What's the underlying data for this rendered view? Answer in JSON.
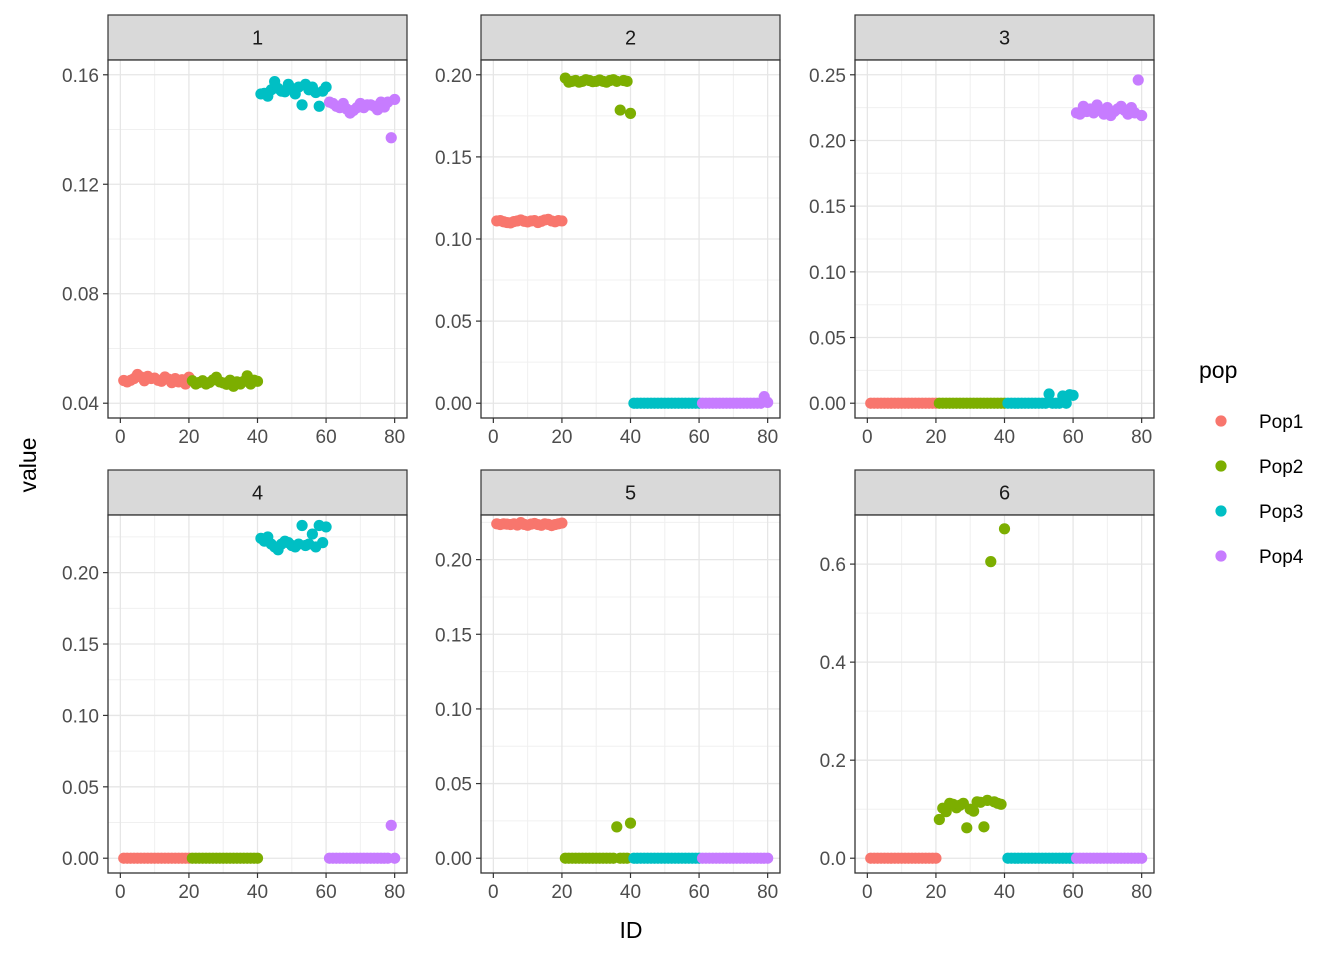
{
  "chart_data": {
    "type": "scatter",
    "facet_by": "panel",
    "scales": "free_y",
    "xlabel": "ID",
    "ylabel": "value",
    "xlim": [
      0,
      80
    ],
    "x_ticks": [
      0,
      20,
      40,
      60,
      80
    ],
    "grid": true,
    "legend": {
      "title": "pop",
      "placement": "right",
      "entries": [
        {
          "name": "Pop1",
          "color": "#F8766D"
        },
        {
          "name": "Pop2",
          "color": "#7CAE00"
        },
        {
          "name": "Pop3",
          "color": "#00BFC4"
        },
        {
          "name": "Pop4",
          "color": "#C77CFF"
        }
      ]
    },
    "panels": [
      {
        "strip": "1",
        "ylim": [
          0.04,
          0.16
        ],
        "y_ticks": [
          "0.04",
          "0.08",
          "0.12",
          "0.16"
        ],
        "x_tick_labels": [
          "0",
          "20",
          "40",
          "60",
          "80"
        ],
        "series": [
          {
            "name": "Pop1",
            "values": [
              0.0483,
              0.0478,
              0.0484,
              0.049,
              0.0505,
              0.0496,
              0.0482,
              0.0498,
              0.049,
              0.0492,
              0.0484,
              0.048,
              0.0496,
              0.0488,
              0.0475,
              0.049,
              0.0478,
              0.0486,
              0.047,
              0.0495
            ]
          },
          {
            "name": "Pop2",
            "values": [
              0.0482,
              0.047,
              0.0476,
              0.0482,
              0.047,
              0.0476,
              0.0485,
              0.0495,
              0.0478,
              0.0474,
              0.0469,
              0.0484,
              0.0462,
              0.0478,
              0.047,
              0.048,
              0.05,
              0.047,
              0.0484,
              0.048
            ]
          },
          {
            "name": "Pop3",
            "values": [
              0.153,
              0.1532,
              0.1522,
              0.1545,
              0.1575,
              0.155,
              0.154,
              0.1538,
              0.1565,
              0.155,
              0.153,
              0.1555,
              0.149,
              0.1565,
              0.1545,
              0.1555,
              0.1535,
              0.1485,
              0.154,
              0.1555
            ]
          },
          {
            "name": "Pop4",
            "values": [
              0.15,
              0.1495,
              0.1485,
              0.148,
              0.1495,
              0.1475,
              0.146,
              0.147,
              0.148,
              0.1495,
              0.148,
              0.149,
              0.149,
              0.1485,
              0.1472,
              0.15,
              0.1482,
              0.15,
              0.137,
              0.151
            ]
          }
        ]
      },
      {
        "strip": "2",
        "ylim": [
          0.0,
          0.2
        ],
        "y_ticks": [
          "0.00",
          "0.05",
          "0.10",
          "0.15",
          "0.20"
        ],
        "x_tick_labels": [
          "0",
          "20",
          "40",
          "60",
          "80"
        ],
        "series": [
          {
            "name": "Pop1",
            "values": [
              0.111,
              0.1112,
              0.1105,
              0.11,
              0.1098,
              0.1106,
              0.111,
              0.1116,
              0.1108,
              0.1104,
              0.111,
              0.1112,
              0.11,
              0.1108,
              0.1116,
              0.112,
              0.111,
              0.1105,
              0.1112,
              0.111
            ]
          },
          {
            "name": "Pop2",
            "values": [
              0.198,
              0.1955,
              0.196,
              0.1965,
              0.1955,
              0.196,
              0.197,
              0.1965,
              0.1958,
              0.196,
              0.1968,
              0.196,
              0.1955,
              0.1965,
              0.197,
              0.196,
              0.1785,
              0.1965,
              0.196,
              0.1765
            ]
          },
          {
            "name": "Pop3",
            "values": [
              0,
              0,
              0,
              0,
              0,
              0,
              0,
              0,
              0,
              0,
              0,
              0,
              0,
              0,
              0,
              0,
              0,
              0,
              0,
              0
            ]
          },
          {
            "name": "Pop4",
            "values": [
              0,
              0,
              0,
              0,
              0,
              0,
              0,
              0,
              0,
              0,
              0,
              0,
              0,
              0,
              0,
              0,
              0,
              0,
              0.004,
              0.0005
            ]
          }
        ]
      },
      {
        "strip": "3",
        "ylim": [
          0.0,
          0.25
        ],
        "y_ticks": [
          "0.00",
          "0.05",
          "0.10",
          "0.15",
          "0.20",
          "0.25"
        ],
        "x_tick_labels": [
          "0",
          "20",
          "40",
          "60",
          "80"
        ],
        "series": [
          {
            "name": "Pop1",
            "values": [
              0,
              0,
              0,
              0,
              0,
              0,
              0,
              0,
              0,
              0,
              0,
              0,
              0,
              0,
              0,
              0,
              0,
              0,
              0,
              0
            ]
          },
          {
            "name": "Pop2",
            "values": [
              0,
              0,
              0,
              0,
              0,
              0,
              0,
              0,
              0,
              0,
              0,
              0,
              0,
              0,
              0,
              0,
              0,
              0,
              0,
              0
            ]
          },
          {
            "name": "Pop3",
            "values": [
              0,
              0,
              0,
              0,
              0,
              0,
              0,
              0,
              0,
              0,
              0,
              0,
              0.007,
              0,
              0,
              0,
              0.0055,
              0,
              0.0065,
              0.006
            ]
          },
          {
            "name": "Pop4",
            "values": [
              0.221,
              0.22,
              0.226,
              0.222,
              0.224,
              0.221,
              0.227,
              0.223,
              0.22,
              0.225,
              0.219,
              0.222,
              0.224,
              0.226,
              0.223,
              0.22,
              0.225,
              0.221,
              0.246,
              0.219
            ]
          }
        ]
      },
      {
        "strip": "4",
        "ylim": [
          0.0,
          0.23
        ],
        "y_ticks": [
          "0.00",
          "0.05",
          "0.10",
          "0.15",
          "0.20"
        ],
        "x_tick_labels": [
          "0",
          "20",
          "40",
          "60",
          "80"
        ],
        "series": [
          {
            "name": "Pop1",
            "values": [
              0,
              0,
              0,
              0,
              0,
              0,
              0,
              0,
              0,
              0,
              0,
              0,
              0,
              0,
              0,
              0,
              0,
              0,
              0,
              0
            ]
          },
          {
            "name": "Pop2",
            "values": [
              0,
              0,
              0,
              0,
              0,
              0,
              0,
              0,
              0,
              0,
              0,
              0,
              0,
              0,
              0,
              0,
              0,
              0,
              0,
              0
            ]
          },
          {
            "name": "Pop3",
            "values": [
              0.224,
              0.222,
              0.225,
              0.22,
              0.218,
              0.216,
              0.22,
              0.222,
              0.221,
              0.219,
              0.218,
              0.22,
              0.233,
              0.219,
              0.22,
              0.227,
              0.218,
              0.233,
              0.221,
              0.232
            ]
          },
          {
            "name": "Pop4",
            "values": [
              0,
              0,
              0,
              0,
              0,
              0,
              0,
              0,
              0,
              0,
              0,
              0,
              0,
              0,
              0,
              0,
              0,
              0,
              0.023,
              0
            ]
          }
        ]
      },
      {
        "strip": "5",
        "ylim": [
          0.0,
          0.22
        ],
        "y_ticks": [
          "0.00",
          "0.05",
          "0.10",
          "0.15",
          "0.20"
        ],
        "x_tick_labels": [
          "0",
          "20",
          "40",
          "60",
          "80"
        ],
        "series": [
          {
            "name": "Pop1",
            "values": [
              0.224,
              0.2235,
              0.224,
              0.2238,
              0.2235,
              0.224,
              0.2232,
              0.2248,
              0.2236,
              0.223,
              0.2238,
              0.2242,
              0.2235,
              0.223,
              0.224,
              0.2236,
              0.2228,
              0.2235,
              0.224,
              0.2245
            ]
          },
          {
            "name": "Pop2",
            "values": [
              0,
              0,
              0,
              0,
              0,
              0,
              0,
              0,
              0,
              0,
              0,
              0,
              0,
              0,
              0,
              0.021,
              0,
              0,
              0,
              0.0235
            ]
          },
          {
            "name": "Pop3",
            "values": [
              0,
              0,
              0,
              0,
              0,
              0,
              0,
              0,
              0,
              0,
              0,
              0,
              0,
              0,
              0,
              0,
              0,
              0,
              0,
              0
            ]
          },
          {
            "name": "Pop4",
            "values": [
              0,
              0,
              0,
              0,
              0,
              0,
              0,
              0,
              0,
              0,
              0,
              0,
              0,
              0,
              0,
              0,
              0,
              0,
              0,
              0
            ]
          }
        ]
      },
      {
        "strip": "6",
        "ylim": [
          0.0,
          0.67
        ],
        "y_ticks": [
          "0.0",
          "0.2",
          "0.4",
          "0.6"
        ],
        "x_tick_labels": [
          "0",
          "20",
          "40",
          "60",
          "80"
        ],
        "series": [
          {
            "name": "Pop1",
            "values": [
              0,
              0,
              0,
              0,
              0,
              0,
              0,
              0,
              0,
              0,
              0,
              0,
              0,
              0,
              0,
              0,
              0,
              0,
              0,
              0
            ]
          },
          {
            "name": "Pop2",
            "values": [
              0.079,
              0.102,
              0.095,
              0.112,
              0.11,
              0.103,
              0.108,
              0.112,
              0.062,
              0.1,
              0.096,
              0.115,
              0.114,
              0.064,
              0.118,
              0.605,
              0.115,
              0.112,
              0.11,
              0.672
            ]
          },
          {
            "name": "Pop3",
            "values": [
              0,
              0,
              0,
              0,
              0,
              0,
              0,
              0,
              0,
              0,
              0,
              0,
              0,
              0,
              0,
              0,
              0,
              0,
              0,
              0
            ]
          },
          {
            "name": "Pop4",
            "values": [
              0,
              0,
              0,
              0,
              0,
              0,
              0,
              0,
              0,
              0,
              0,
              0,
              0,
              0,
              0,
              0,
              0,
              0,
              0,
              0
            ]
          }
        ]
      }
    ]
  }
}
